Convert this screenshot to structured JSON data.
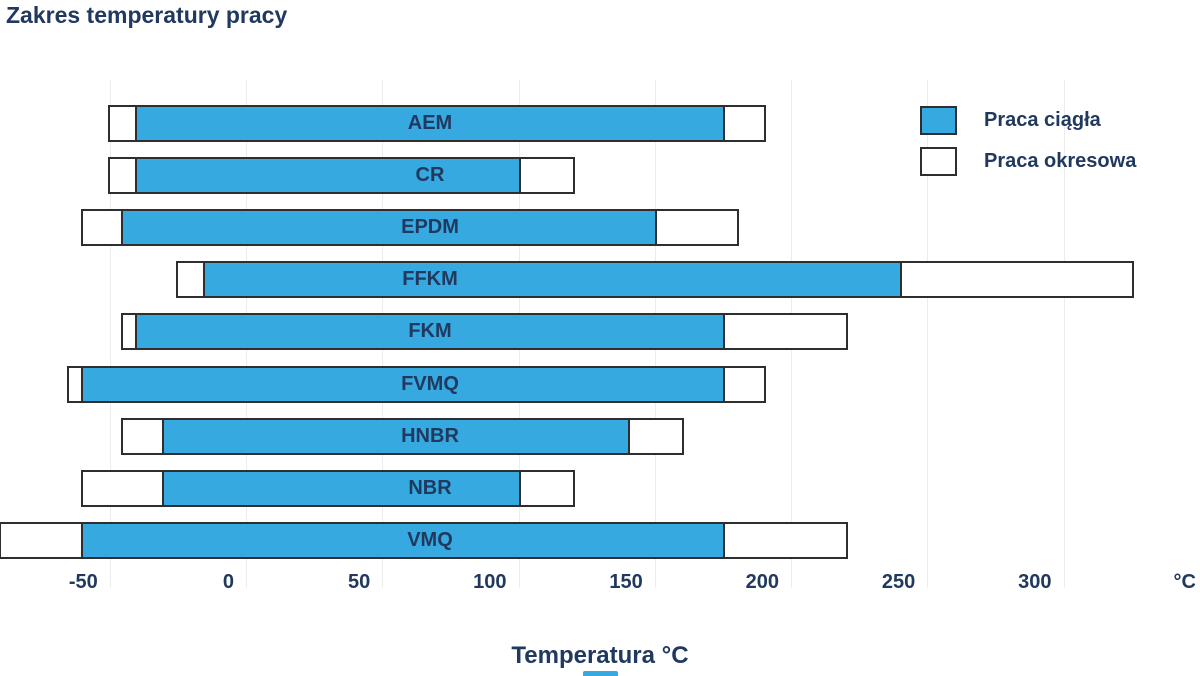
{
  "title": "Zakres temperatury pracy",
  "xlabel": "Temperatura °C",
  "legend": [
    {
      "label": "Praca ciągła",
      "type": "continuous"
    },
    {
      "label": "Praca okresowa",
      "type": "intermittent"
    }
  ],
  "colors": {
    "continuous_fill": "#35a9e0",
    "intermittent_fill": "#ffffff",
    "bar_border": "#2e2e2e",
    "text": "#21395f",
    "gridline": "#ececec",
    "background": "#ffffff"
  },
  "chart_data": {
    "type": "bar",
    "orientation": "horizontal-range",
    "title": "Zakres temperatury pracy",
    "xlabel": "Temperatura °C",
    "x_axis_unit": "°C",
    "x_ticks": [
      -50,
      0,
      50,
      100,
      150,
      200,
      250,
      300
    ],
    "xlim": [
      -90,
      350
    ],
    "grid": true,
    "legend_position": "top-right",
    "series_names": [
      "Praca ciągła",
      "Praca okresowa"
    ],
    "categories": [
      "AEM",
      "CR",
      "EPDM",
      "FFKM",
      "FKM",
      "FVMQ",
      "HNBR",
      "NBR",
      "VMQ"
    ],
    "materials": [
      {
        "name": "AEM",
        "continuous": [
          -40,
          175
        ],
        "intermittent": [
          -50,
          190
        ]
      },
      {
        "name": "CR",
        "continuous": [
          -40,
          100
        ],
        "intermittent": [
          -50,
          120
        ]
      },
      {
        "name": "EPDM",
        "continuous": [
          -45,
          150
        ],
        "intermittent": [
          -60,
          180
        ]
      },
      {
        "name": "FFKM",
        "continuous": [
          -15,
          240
        ],
        "intermittent": [
          -25,
          325
        ]
      },
      {
        "name": "FKM",
        "continuous": [
          -40,
          175
        ],
        "intermittent": [
          -45,
          220
        ]
      },
      {
        "name": "FVMQ",
        "continuous": [
          -60,
          175
        ],
        "intermittent": [
          -65,
          190
        ]
      },
      {
        "name": "HNBR",
        "continuous": [
          -30,
          140
        ],
        "intermittent": [
          -45,
          160
        ]
      },
      {
        "name": "NBR",
        "continuous": [
          -30,
          100
        ],
        "intermittent": [
          -60,
          120
        ]
      },
      {
        "name": "VMQ",
        "continuous": [
          -60,
          175
        ],
        "intermittent": [
          -90,
          220
        ]
      }
    ]
  }
}
